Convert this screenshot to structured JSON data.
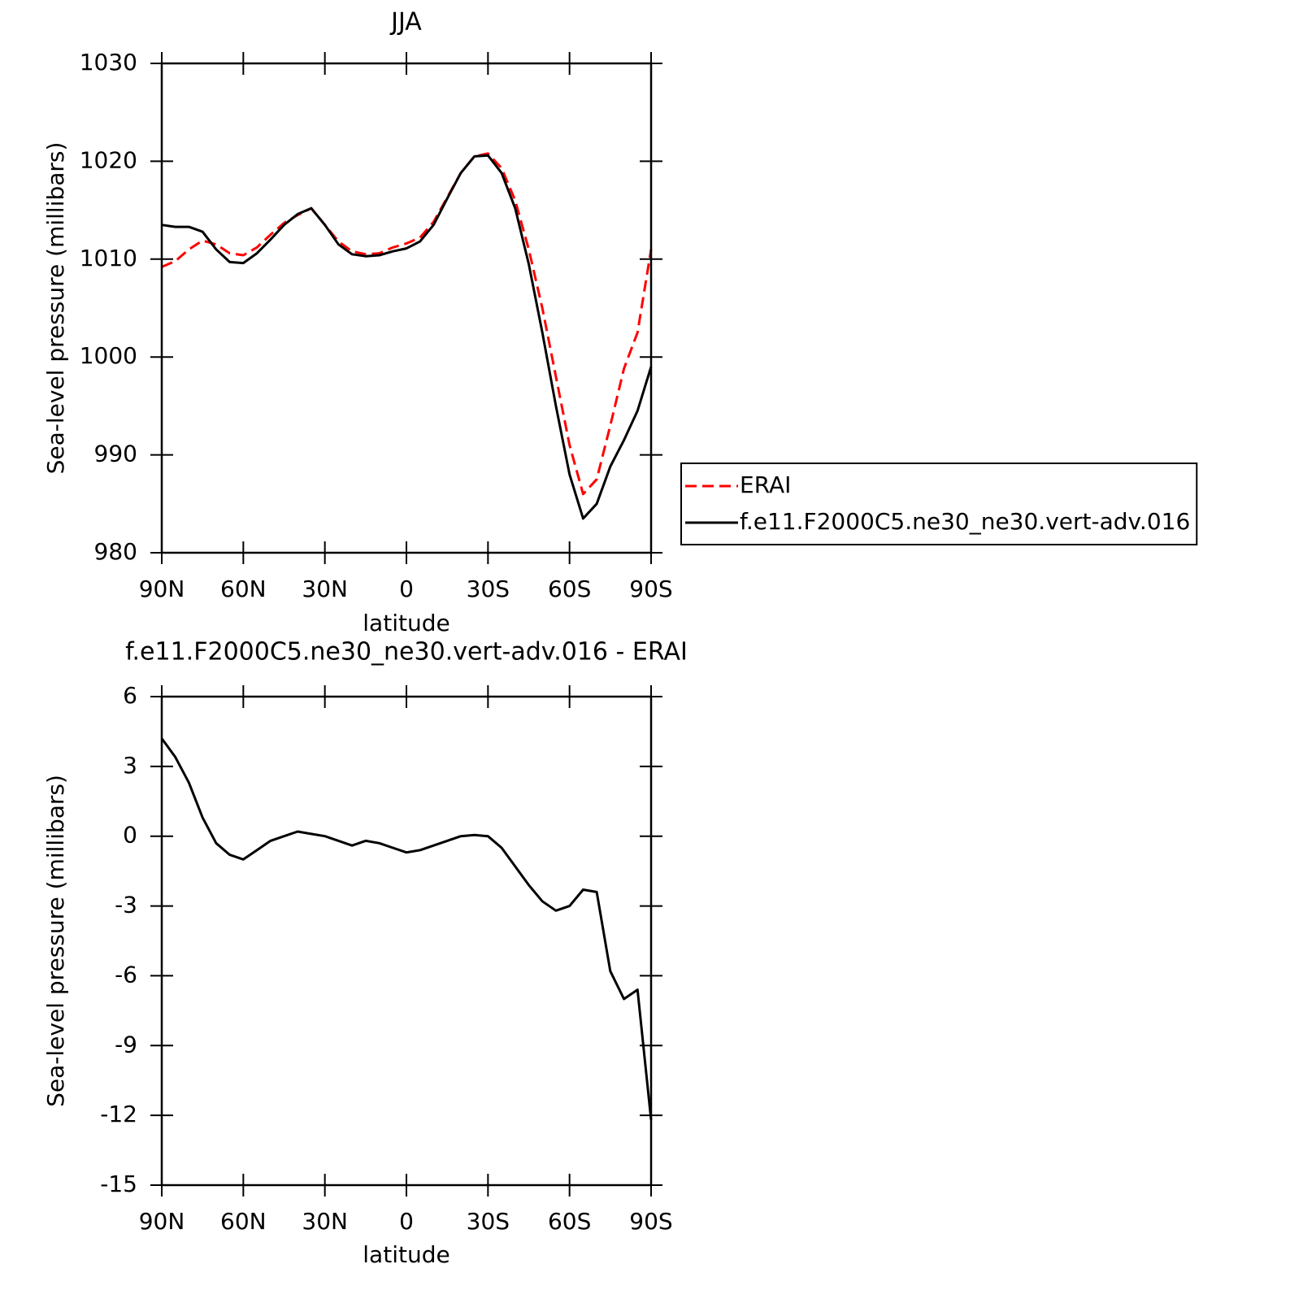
{
  "chart_data": [
    {
      "type": "line",
      "title": "JJA",
      "xlabel": "latitude",
      "ylabel": "Sea-level pressure (millibars)",
      "x": [
        90,
        85,
        80,
        75,
        70,
        65,
        60,
        55,
        50,
        45,
        40,
        35,
        30,
        25,
        20,
        15,
        10,
        5,
        0,
        -5,
        -10,
        -15,
        -20,
        -25,
        -30,
        -35,
        -40,
        -45,
        -50,
        -55,
        -60,
        -65,
        -70,
        -75,
        -80,
        -85,
        -90
      ],
      "series": [
        {
          "name": "ERAI",
          "color": "#ff0000",
          "style": "dashed",
          "values": [
            1009.2,
            1009.8,
            1011,
            1011.9,
            1011.5,
            1010.6,
            1010.4,
            1011.2,
            1012.5,
            1013.7,
            1014.5,
            1015.2,
            1013.5,
            1011.8,
            1010.8,
            1010.5,
            1010.6,
            1011.2,
            1011.6,
            1012.2,
            1013.8,
            1016.3,
            1018.8,
            1020.5,
            1020.8,
            1019.3,
            1016,
            1011,
            1005,
            998,
            991,
            986,
            987.5,
            993,
            998.8,
            1002.5,
            1011
          ]
        },
        {
          "name": "f.e11.F2000C5.ne30_ne30.vert-adv.016",
          "color": "#000000",
          "style": "solid",
          "values": [
            1013.5,
            1013.3,
            1013.3,
            1012.8,
            1011,
            1009.7,
            1009.6,
            1010.6,
            1012,
            1013.5,
            1014.6,
            1015.2,
            1013.5,
            1011.5,
            1010.5,
            1010.3,
            1010.4,
            1010.8,
            1011.1,
            1011.8,
            1013.5,
            1016.2,
            1018.8,
            1020.5,
            1020.6,
            1018.8,
            1015.2,
            1009.5,
            1002.5,
            995,
            988,
            983.5,
            985,
            988.8,
            991.5,
            994.5,
            999
          ]
        }
      ],
      "xlim": [
        90,
        -90
      ],
      "xticks": [
        {
          "value": 90,
          "label": "90N"
        },
        {
          "value": 60,
          "label": "60N"
        },
        {
          "value": 30,
          "label": "30N"
        },
        0,
        {
          "value": -30,
          "label": "30S"
        },
        {
          "value": -60,
          "label": "60S"
        },
        {
          "value": -90,
          "label": "90S"
        }
      ],
      "ylim": [
        980,
        1030
      ],
      "yticks": [
        980,
        990,
        1000,
        1010,
        1020,
        1030
      ],
      "legend": "right"
    },
    {
      "type": "line",
      "title": "f.e11.F2000C5.ne30_ne30.vert-adv.016 - ERAI",
      "xlabel": "latitude",
      "ylabel": "Sea-level pressure (millibars)",
      "x": [
        90,
        85,
        80,
        75,
        70,
        65,
        60,
        55,
        50,
        45,
        40,
        35,
        30,
        25,
        20,
        15,
        10,
        5,
        0,
        -5,
        -10,
        -15,
        -20,
        -25,
        -30,
        -35,
        -40,
        -45,
        -50,
        -55,
        -60,
        -65,
        -70,
        -75,
        -80,
        -85,
        -90
      ],
      "series": [
        {
          "color": "#000000",
          "style": "solid",
          "values": [
            4.2,
            3.4,
            2.3,
            0.8,
            -0.3,
            -0.8,
            -1.0,
            -0.6,
            -0.2,
            0.0,
            0.2,
            0.1,
            0.0,
            -0.2,
            -0.4,
            -0.2,
            -0.3,
            -0.5,
            -0.7,
            -0.6,
            -0.4,
            -0.2,
            0.0,
            0.05,
            0.0,
            -0.5,
            -1.3,
            -2.1,
            -2.8,
            -3.2,
            -3.0,
            -2.3,
            -2.4,
            -5.8,
            -7.0,
            -6.6,
            -12.2
          ]
        }
      ],
      "xlim": [
        90,
        -90
      ],
      "xticks": [
        {
          "value": 90,
          "label": "90N"
        },
        {
          "value": 60,
          "label": "60N"
        },
        {
          "value": 30,
          "label": "30N"
        },
        0,
        {
          "value": -30,
          "label": "30S"
        },
        {
          "value": -60,
          "label": "60S"
        },
        {
          "value": -90,
          "label": "90S"
        }
      ],
      "ylim": [
        -15,
        6
      ],
      "yticks": [
        -15,
        -12,
        -9,
        -6,
        -3,
        0,
        3,
        6
      ]
    }
  ]
}
